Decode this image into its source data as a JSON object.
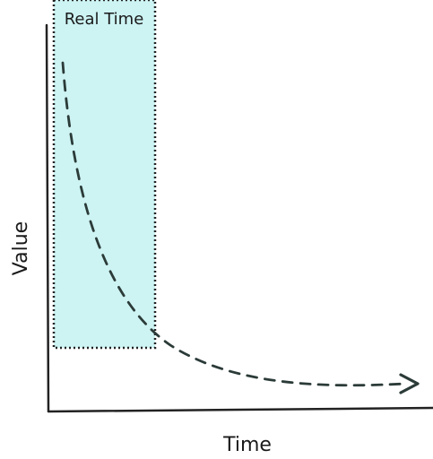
{
  "diagram": {
    "region_label": "Real Time",
    "x_axis_label": "Time",
    "y_axis_label": "Value",
    "colors": {
      "region_fill": "#cdf3f3",
      "region_border": "#222222",
      "axis": "#222222",
      "curve": "#2b3b38",
      "text": "#1a1a1a"
    }
  }
}
